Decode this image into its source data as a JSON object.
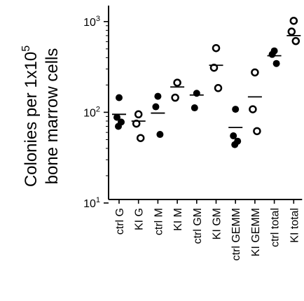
{
  "chart_data": {
    "type": "scatter",
    "ylabel": [
      "Colonies per 1x10^5",
      "bone marrow cells"
    ],
    "yscale": "log",
    "ylim": [
      10,
      1500
    ],
    "yticks": [
      {
        "value": 10,
        "base": "10",
        "exp": "1"
      },
      {
        "value": 100,
        "base": "10",
        "exp": "2"
      },
      {
        "value": 1000,
        "base": "10",
        "exp": "3"
      }
    ],
    "grid": false,
    "legend": "none",
    "colors": {
      "filled": "#000000",
      "open_stroke": "#000000",
      "open_fill": "#ffffff"
    },
    "categories": [
      "ctrl G",
      "KI G",
      "ctrl M",
      "KI M",
      "ctrl GM",
      "KI GM",
      "ctrl GEMM",
      "KI GEMM",
      "ctrl total",
      "KI total"
    ],
    "groups": [
      {
        "label": "ctrl G",
        "marker": "filled",
        "points": [
          145,
          88,
          78,
          70
        ],
        "mean": 95
      },
      {
        "label": "KI G",
        "marker": "open",
        "points": [
          95,
          75,
          52
        ],
        "mean": 80
      },
      {
        "label": "ctrl M",
        "marker": "filled",
        "points": [
          150,
          115,
          57
        ],
        "mean": 98
      },
      {
        "label": "KI M",
        "marker": "open",
        "points": [
          212,
          145
        ],
        "mean": 190
      },
      {
        "label": "ctrl GM",
        "marker": "filled",
        "points": [
          162,
          112
        ],
        "mean": 155
      },
      {
        "label": "KI GM",
        "marker": "open",
        "points": [
          510,
          310,
          185
        ],
        "mean": 330
      },
      {
        "label": "ctrl GEMM",
        "marker": "filled",
        "points": [
          108,
          55,
          48,
          44
        ],
        "mean": 68
      },
      {
        "label": "KI GEMM",
        "marker": "open",
        "points": [
          275,
          108,
          62
        ],
        "mean": 148
      },
      {
        "label": "ctrl total",
        "marker": "filled",
        "points": [
          475,
          435,
          345
        ],
        "mean": 420
      },
      {
        "label": "KI total",
        "marker": "open",
        "points": [
          1020,
          775,
          610
        ],
        "mean": 700
      }
    ]
  }
}
